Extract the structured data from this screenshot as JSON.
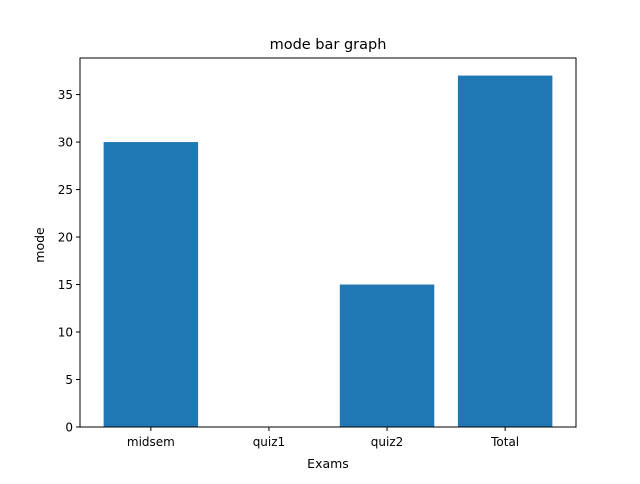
{
  "chart_data": {
    "type": "bar",
    "title": "mode bar graph",
    "xlabel": "Exams",
    "ylabel": "mode",
    "categories": [
      "midsem",
      "quiz1",
      "quiz2",
      "Total"
    ],
    "values": [
      30,
      0,
      15,
      37
    ],
    "ylim": [
      0,
      38.85
    ],
    "yticks": [
      0,
      5,
      10,
      15,
      20,
      25,
      30,
      35
    ],
    "bar_color": "#1f77b4",
    "grid": false,
    "legend": "none"
  }
}
